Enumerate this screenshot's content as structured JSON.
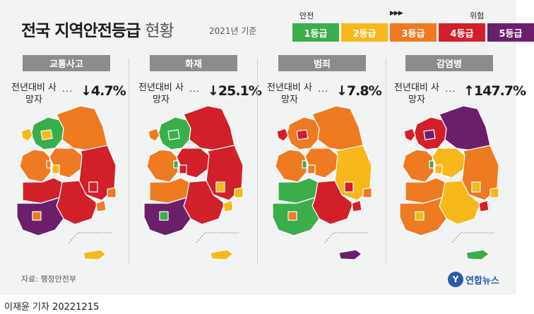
{
  "header": {
    "title_main": "전국 지역안전등급",
    "title_sub": "현황",
    "basis": "2021년 기준"
  },
  "legend": {
    "safe_label": "안전",
    "danger_label": "위험",
    "arrow_text": "▶▶▶",
    "grades": [
      {
        "label": "1등급",
        "color": "#3aae4a"
      },
      {
        "label": "2등급",
        "color": "#f6b81a"
      },
      {
        "label": "3등급",
        "color": "#ee7a22"
      },
      {
        "label": "4등급",
        "color": "#d2202b"
      },
      {
        "label": "5등급",
        "color": "#6b1f6b"
      }
    ]
  },
  "chart_data": {
    "type": "table",
    "metric_label": "전년대비 사망자",
    "panels": [
      {
        "category": "교통사고",
        "change_text": "↓4.7%",
        "direction": "down",
        "change_pct": -4.7,
        "grades": {
          "seoul": 2,
          "incheon": 2,
          "gyeonggi": 1,
          "gangwon": 3,
          "chungbuk": 3,
          "chungnam": 3,
          "sejong": 3,
          "daejeon": 2,
          "gyeongbuk": 4,
          "daegu": 4,
          "jeonbuk": 4,
          "gwangju": 3,
          "jeonnam": 5,
          "gyeongnam": 4,
          "ulsan": 3,
          "busan": 3,
          "jeju": 2
        }
      },
      {
        "category": "화재",
        "change_text": "↓25.1%",
        "direction": "down",
        "change_pct": -25.1,
        "grades": {
          "seoul": 1,
          "incheon": 3,
          "gyeonggi": 1,
          "gangwon": 4,
          "chungbuk": 4,
          "chungnam": 3,
          "sejong": 1,
          "daejeon": 4,
          "gyeongbuk": 4,
          "daegu": 2,
          "jeonbuk": 3,
          "gwangju": 1,
          "jeonnam": 5,
          "gyeongnam": 4,
          "ulsan": 2,
          "busan": 2,
          "jeju": 2
        }
      },
      {
        "category": "범죄",
        "change_text": "↓7.8%",
        "direction": "down",
        "change_pct": -7.8,
        "grades": {
          "seoul": 4,
          "incheon": 4,
          "gyeonggi": 3,
          "gangwon": 3,
          "chungbuk": 3,
          "chungnam": 3,
          "sejong": 1,
          "daejeon": 3,
          "gyeongbuk": 2,
          "daegu": 4,
          "jeonbuk": 1,
          "gwangju": 3,
          "jeonnam": 1,
          "gyeongnam": 4,
          "ulsan": 3,
          "busan": 4,
          "jeju": 5
        }
      },
      {
        "category": "감염병",
        "change_text": "↑147.7%",
        "direction": "up",
        "change_pct": 147.7,
        "grades": {
          "seoul": 5,
          "incheon": 4,
          "gyeonggi": 4,
          "gangwon": 5,
          "chungbuk": 2,
          "chungnam": 3,
          "sejong": 1,
          "daejeon": 2,
          "gyeongbuk": 3,
          "daegu": 2,
          "jeonbuk": 3,
          "gwangju": 2,
          "jeonnam": 3,
          "gyeongnam": 2,
          "ulsan": 2,
          "busan": 4,
          "jeju": 1
        }
      }
    ]
  },
  "footer": {
    "source": "자료: 행정안전부",
    "logo_mark": "Y",
    "logo_name": "연합뉴스",
    "byline": "이재윤 기자  20221215"
  }
}
